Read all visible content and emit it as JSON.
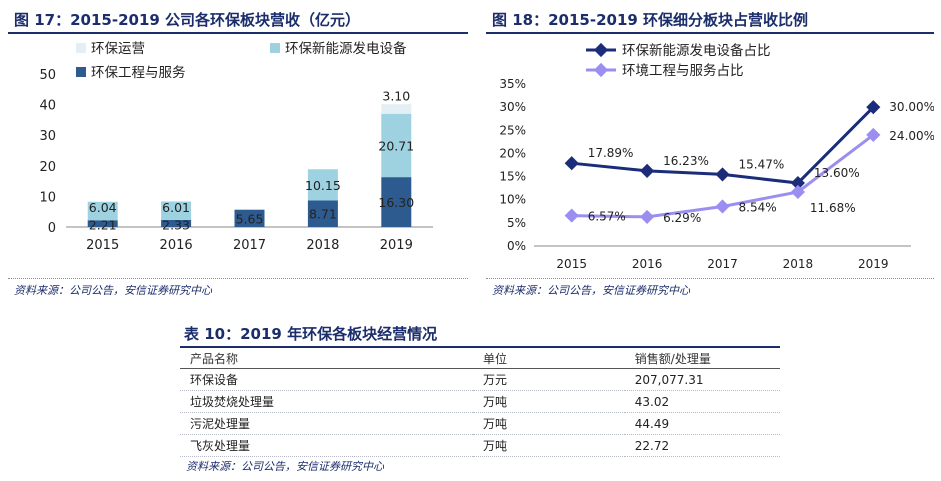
{
  "left_figure": {
    "title": "图 17：2015-2019 公司各环保板块营收（亿元）",
    "source": "资料来源：公司公告，安信证券研究中心"
  },
  "right_figure": {
    "title": "图 18：2015-2019 环保细分板块占营收比例",
    "source": "资料来源：公司公告，安信证券研究中心"
  },
  "table": {
    "title": "表 10：2019 年环保各板块经营情况",
    "headers": [
      "产品名称",
      "单位",
      "销售额/处理量"
    ],
    "rows": [
      [
        "环保设备",
        "万元",
        "207,077.31"
      ],
      [
        "垃圾焚烧处理量",
        "万吨",
        "43.02"
      ],
      [
        "污泥处理量",
        "万吨",
        "44.49"
      ],
      [
        "飞灰处理量",
        "万吨",
        "22.72"
      ]
    ],
    "source": "资料来源：公司公告，安信证券研究中心"
  },
  "chart_data": [
    {
      "type": "bar",
      "stacked": true,
      "categories": [
        "2015",
        "2016",
        "2017",
        "2018",
        "2019"
      ],
      "series": [
        {
          "name": "环保工程与服务",
          "values": [
            2.21,
            2.33,
            5.65,
            8.71,
            16.3
          ],
          "labels": [
            "2.21",
            "2.33",
            "5.65",
            "8.71",
            "16.30"
          ],
          "color": "#2e5b8f"
        },
        {
          "name": "环保新能源发电设备",
          "values": [
            6.04,
            6.01,
            0,
            10.15,
            20.71
          ],
          "labels": [
            "6.04",
            "6.01",
            "",
            "10.15",
            "20.71"
          ],
          "color": "#9ed2e1"
        },
        {
          "name": "环保运营",
          "values": [
            0,
            0,
            0,
            0,
            3.1
          ],
          "labels": [
            "",
            "",
            "",
            "",
            "3.10"
          ],
          "color": "#e3eef5"
        }
      ],
      "ylim": [
        0,
        50
      ],
      "yticks": [
        "0",
        "10",
        "20",
        "30",
        "40",
        "50"
      ],
      "legend": "top-left"
    },
    {
      "type": "line",
      "categories": [
        "2015",
        "2016",
        "2017",
        "2018",
        "2019"
      ],
      "series": [
        {
          "name": "环保新能源发电设备占比",
          "values": [
            17.89,
            16.23,
            15.47,
            13.6,
            30.0
          ],
          "labels": [
            "17.89%",
            "16.23%",
            "15.47%",
            "13.60%",
            "30.00%"
          ],
          "color": "#1b2d7a"
        },
        {
          "name": "环境工程与服务占比",
          "values": [
            6.57,
            6.29,
            8.54,
            11.68,
            24.0
          ],
          "labels": [
            "6.57%",
            "6.29%",
            "8.54%",
            "11.68%",
            "24.00%"
          ],
          "color": "#9a8ff0"
        }
      ],
      "ylim": [
        0,
        35
      ],
      "yticks": [
        "0%",
        "5%",
        "10%",
        "15%",
        "20%",
        "25%",
        "30%",
        "35%"
      ],
      "legend": "top"
    }
  ]
}
